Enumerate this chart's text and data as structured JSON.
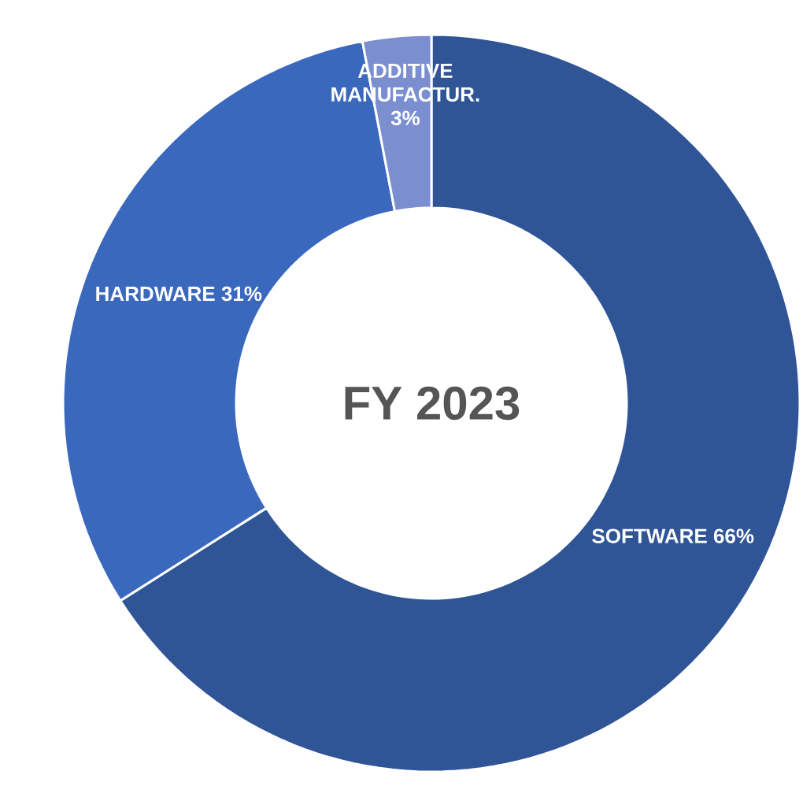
{
  "chart_data": {
    "type": "donut",
    "title": "FY 2023",
    "categories": [
      "SOFTWARE",
      "HARDWARE",
      "ADDITIVE MANUFACTUR."
    ],
    "values": [
      66,
      31,
      3
    ],
    "value_labels": [
      "66%",
      "31%",
      "3%"
    ],
    "colors": [
      "#2f5597",
      "#3a68bd",
      "#7b8fd0"
    ]
  }
}
